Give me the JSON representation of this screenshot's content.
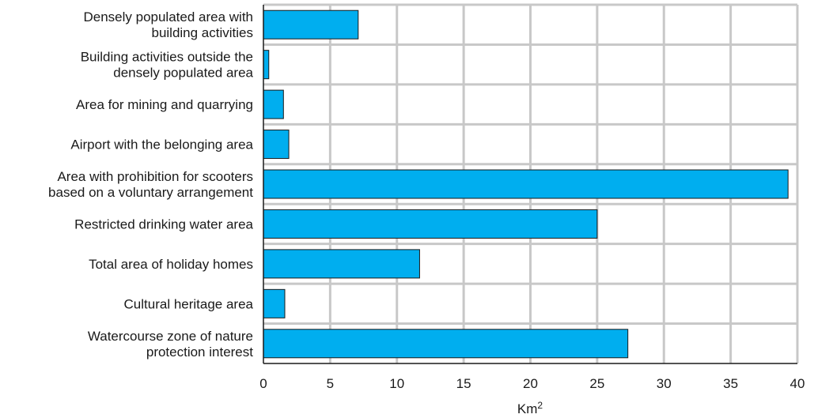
{
  "chart_data": {
    "type": "bar",
    "orientation": "horizontal",
    "categories": [
      [
        "Densely populated area with",
        "building activities"
      ],
      [
        "Building activities outside the",
        "densely populated area"
      ],
      [
        "Area for mining and quarrying"
      ],
      [
        "Airport with the belonging area"
      ],
      [
        "Area with prohibition for scooters",
        "based on a voluntary arrangement"
      ],
      [
        "Restricted drinking water area"
      ],
      [
        "Total area of holiday homes"
      ],
      [
        "Cultural heritage area"
      ],
      [
        "Watercourse zone of nature",
        "protection interest"
      ]
    ],
    "values": [
      7.1,
      0.4,
      1.5,
      1.9,
      39.3,
      25.0,
      11.7,
      1.6,
      27.3
    ],
    "xlabel": "Km",
    "xlabel_superscript": "2",
    "ylabel": "",
    "xlim": [
      0,
      40
    ],
    "xticks": [
      0,
      5,
      10,
      15,
      20,
      25,
      30,
      35,
      40
    ],
    "grid": true,
    "legend": "none",
    "colors": {
      "bar_fill": "#00aeef",
      "bar_stroke": "#1a1a1a",
      "grid": "#c8c8c8",
      "axis": "#1a1a1a"
    }
  }
}
